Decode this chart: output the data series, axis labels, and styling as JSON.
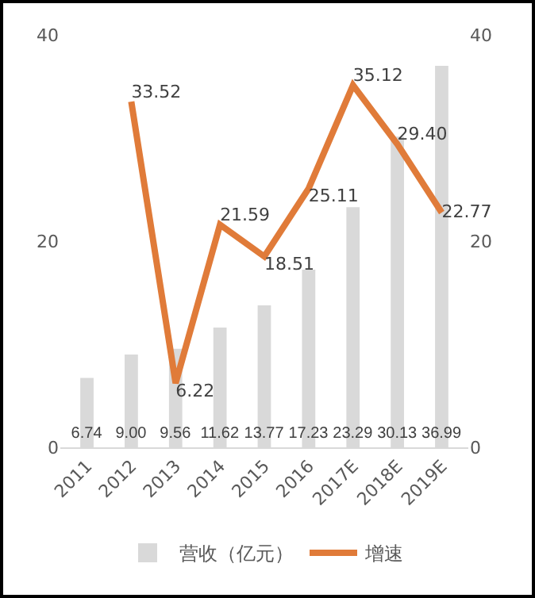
{
  "chart_data": {
    "type": "bar",
    "categories": [
      "2011",
      "2012",
      "2013",
      "2014",
      "2015",
      "2016",
      "2017E",
      "2018E",
      "2019E"
    ],
    "series": [
      {
        "name": "营收（亿元）",
        "color": "#d9d9d9",
        "values": [
          6.74,
          9.0,
          9.56,
          11.62,
          13.77,
          17.23,
          23.29,
          30.13,
          36.99
        ],
        "value_labels": [
          "6.74",
          "9.00",
          "9.56",
          "11.62",
          "13.77",
          "17.23",
          "23.29",
          "30.13",
          "36.99"
        ]
      },
      {
        "name": "增速",
        "type": "line",
        "axis": "y2",
        "color": "#e07b39",
        "values": [
          null,
          33.52,
          6.22,
          21.59,
          18.51,
          25.11,
          35.12,
          29.4,
          22.77
        ],
        "value_labels": [
          null,
          "33.52",
          "6.22",
          "21.59",
          "18.51",
          "25.11",
          "35.12",
          "29.40",
          "22.77"
        ]
      }
    ],
    "ylim": [
      0,
      40
    ],
    "yticks": [
      0,
      20,
      40
    ],
    "y2lim": [
      0,
      40
    ],
    "y2ticks": [
      0,
      20,
      40
    ],
    "grid": false,
    "legend": "bottom",
    "marker": "none",
    "line_style": "solid"
  }
}
